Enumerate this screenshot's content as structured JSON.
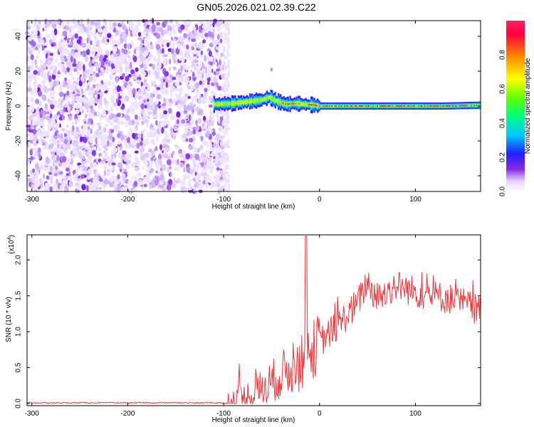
{
  "title": "GN05.2026.021.02.39.C22",
  "chart_data": [
    {
      "type": "heatmap",
      "name": "spectrogram",
      "xlabel": "Height of straight line (km)",
      "ylabel": "Frequency (Hz)",
      "xlim": [
        -305,
        168
      ],
      "ylim": [
        -49,
        49
      ],
      "xticks": [
        -300,
        -200,
        -100,
        0,
        100
      ],
      "yticks": [
        -40,
        -20,
        0,
        20,
        40
      ],
      "colorbar": {
        "label": "Normalized spectral amplitude",
        "range": [
          0,
          1
        ],
        "ticks": [
          "0.0",
          "0.2",
          "0.4",
          "0.6",
          "0.8"
        ],
        "tick_values": [
          0.0,
          0.2,
          0.4,
          0.6,
          0.8
        ]
      },
      "noise_region_x": [
        -305,
        -100
      ],
      "signal_track": {
        "x": [
          -110,
          -90,
          -75,
          -60,
          -52,
          -45,
          -35,
          -25,
          -15,
          -5,
          0,
          50,
          100,
          130,
          168
        ],
        "freq_hz": [
          1.0,
          1.5,
          2.5,
          3.5,
          5.0,
          3.0,
          1.0,
          1.5,
          1.0,
          0.5,
          0.0,
          0.0,
          0.0,
          0.0,
          0.5
        ]
      }
    },
    {
      "type": "line",
      "name": "snr",
      "xlabel": "Height of straight line (km)",
      "ylabel": "SNR (10 * v/v)",
      "y_scale_label": "(x10",
      "y_scale_exp": "4",
      "xlim": [
        -305,
        168
      ],
      "ylim": [
        -0.03,
        2.35
      ],
      "xticks": [
        -300,
        -200,
        -100,
        0,
        100
      ],
      "yticks": [
        0.0,
        0.5,
        1.0,
        1.5,
        2.0
      ],
      "ytick_labels": [
        "0.0",
        "0.5",
        "1.0",
        "1.5",
        "2.0"
      ],
      "color": "#e8383b",
      "series_trend": {
        "x": [
          -305,
          -100,
          -80,
          -60,
          -40,
          -20,
          0,
          20,
          40,
          50,
          60,
          80,
          100,
          120,
          140,
          168
        ],
        "y": [
          0.0,
          0.0,
          0.05,
          0.2,
          0.4,
          0.55,
          0.85,
          1.1,
          1.4,
          1.7,
          1.45,
          1.65,
          1.55,
          1.5,
          1.45,
          1.3
        ]
      }
    }
  ]
}
